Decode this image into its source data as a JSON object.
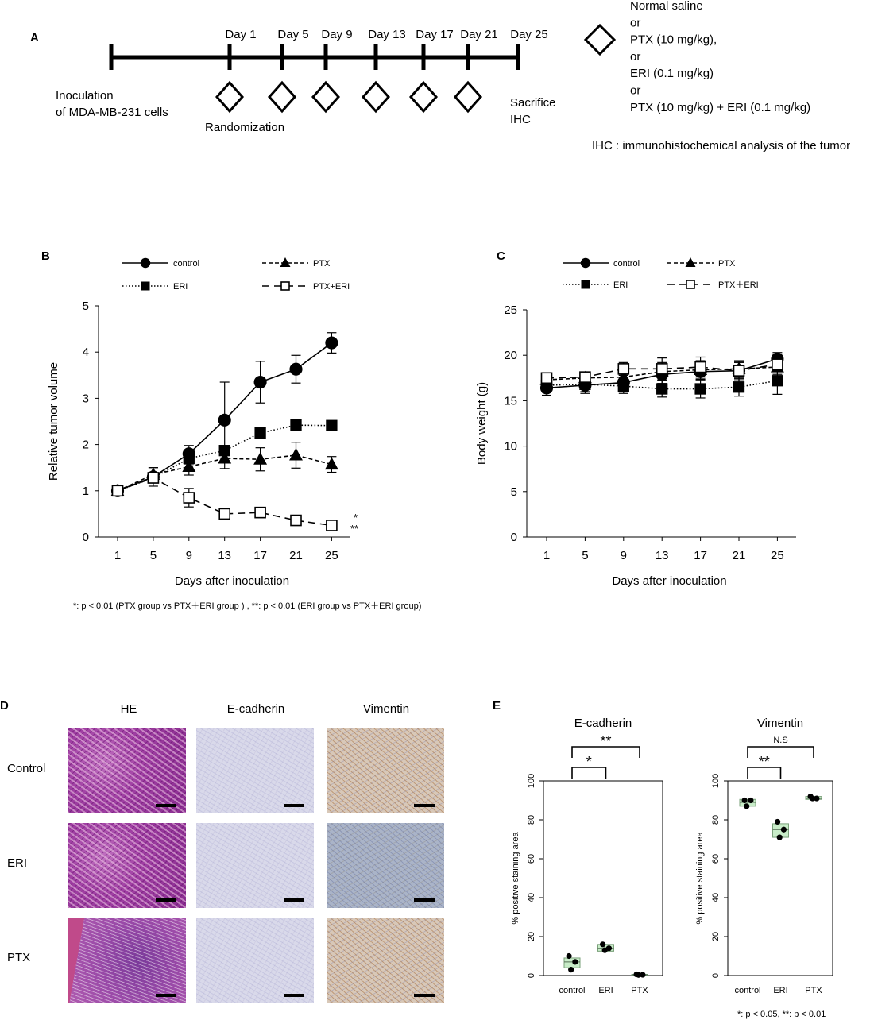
{
  "panelA": {
    "label": "A",
    "days": [
      "Day 1",
      "Day 5",
      "Day 9",
      "Day 13",
      "Day 17",
      "Day 21",
      "Day 25"
    ],
    "start_line1": "Inoculation",
    "start_line2": "of MDA-MB-231 cells",
    "randomization": "Randomization",
    "end_line1": "Sacrifice",
    "end_line2": "IHC",
    "treatments": [
      "Normal saline",
      "or",
      "PTX (10 mg/kg),",
      "or",
      "ERI (0.1 mg/kg)",
      "or",
      "PTX (10 mg/kg) + ERI (0.1 mg/kg)"
    ],
    "ihc_note": "IHC : immunohistochemical analysis of the tumor"
  },
  "panelB": {
    "label": "B",
    "legend": [
      "control",
      "PTX",
      "ERI",
      "PTX+ERI"
    ],
    "sig1": "*",
    "sig2": "**",
    "footnote": "*: p < 0.01 (PTX group vs PTX＋ERI group ) , **: p < 0.01 (ERI group vs PTX＋ERI group)"
  },
  "panelC": {
    "label": "C",
    "legend": [
      "control",
      "PTX",
      "ERI",
      "PTX＋ERI"
    ]
  },
  "panelD": {
    "label": "D",
    "columns": [
      "HE",
      "E-cadherin",
      "Vimentin"
    ],
    "rows": [
      "Control",
      "ERI",
      "PTX"
    ]
  },
  "panelE": {
    "label": "E",
    "footnote": "*: p < 0.05,  **: p < 0.01"
  },
  "chart_data": [
    {
      "id": "B",
      "type": "line",
      "xlabel": "Days after inoculation",
      "ylabel": "Relative tumor volume",
      "categories": [
        "1",
        "5",
        "9",
        "13",
        "17",
        "21",
        "25"
      ],
      "ylim": [
        0,
        5
      ],
      "yticks": [
        "0",
        "1",
        "2",
        "3",
        "4",
        "5"
      ],
      "series": [
        {
          "name": "control",
          "values": [
            1.0,
            1.3,
            1.8,
            2.53,
            3.35,
            3.63,
            4.2
          ],
          "err": [
            0.05,
            0.2,
            0.18,
            0.82,
            0.45,
            0.3,
            0.22
          ]
        },
        {
          "name": "PTX",
          "values": [
            1.0,
            1.35,
            1.52,
            1.7,
            1.68,
            1.77,
            1.57
          ],
          "err": [
            0.05,
            0.15,
            0.18,
            0.22,
            0.25,
            0.28,
            0.17
          ]
        },
        {
          "name": "ERI",
          "values": [
            1.0,
            1.28,
            1.7,
            1.87,
            2.25,
            2.42,
            2.41
          ],
          "err": [
            0.05,
            0.1,
            0.12,
            0.05,
            0.05,
            0.05,
            0.05
          ]
        },
        {
          "name": "PTX+ERI",
          "values": [
            1.0,
            1.28,
            0.85,
            0.5,
            0.53,
            0.36,
            0.25
          ],
          "err": [
            0.05,
            0.1,
            0.2,
            0.1,
            0.1,
            0.06,
            0.06
          ]
        }
      ]
    },
    {
      "id": "C",
      "type": "line",
      "xlabel": "Days after inoculation",
      "ylabel": "Body weight (g)",
      "categories": [
        "1",
        "5",
        "9",
        "13",
        "17",
        "21",
        "25"
      ],
      "ylim": [
        0,
        25
      ],
      "yticks": [
        "0",
        "5",
        "10",
        "15",
        "20",
        "25"
      ],
      "series": [
        {
          "name": "control",
          "values": [
            16.4,
            16.7,
            17.0,
            17.9,
            18.2,
            18.3,
            19.6
          ],
          "err": [
            0.8,
            0.7,
            0.8,
            1.0,
            0.9,
            0.9,
            0.7
          ]
        },
        {
          "name": "PTX",
          "values": [
            17.3,
            17.5,
            17.6,
            18.2,
            18.4,
            18.5,
            18.7
          ],
          "err": [
            0.6,
            0.5,
            0.7,
            1.0,
            1.0,
            0.8,
            0.8
          ]
        },
        {
          "name": "ERI",
          "values": [
            16.7,
            16.8,
            16.6,
            16.3,
            16.3,
            16.5,
            17.2
          ],
          "err": [
            0.8,
            1.0,
            0.8,
            0.9,
            1.0,
            1.0,
            1.5
          ]
        },
        {
          "name": "PTX＋ERI",
          "values": [
            17.5,
            17.6,
            18.5,
            18.5,
            18.7,
            18.3,
            19.0
          ],
          "err": [
            0.5,
            0.5,
            0.7,
            1.2,
            1.1,
            1.1,
            0.8
          ]
        }
      ]
    },
    {
      "id": "E1",
      "type": "box",
      "title": "E-cadherin",
      "ylabel": "% positive staining area",
      "categories": [
        "control",
        "ERI",
        "PTX"
      ],
      "ylim": [
        0,
        100
      ],
      "yticks": [
        "0",
        "20",
        "40",
        "60",
        "80",
        "100"
      ],
      "points": [
        [
          10,
          7,
          3
        ],
        [
          16,
          14,
          13
        ],
        [
          0.6,
          0.4,
          0.3
        ]
      ],
      "box": [
        [
          4,
          7,
          9
        ],
        [
          12.5,
          14,
          16
        ],
        [
          0.2,
          0.4,
          0.6
        ]
      ],
      "brackets": [
        {
          "from": 0,
          "to": 1,
          "label": "*"
        },
        {
          "from": 0,
          "to": 2,
          "label": "**"
        }
      ]
    },
    {
      "id": "E2",
      "type": "box",
      "title": "Vimentin",
      "ylabel": "% positive staining area",
      "categories": [
        "control",
        "ERI",
        "PTX"
      ],
      "ylim": [
        0,
        100
      ],
      "yticks": [
        "0",
        "20",
        "40",
        "60",
        "80",
        "100"
      ],
      "points": [
        [
          90,
          90,
          87
        ],
        [
          79,
          75,
          71
        ],
        [
          92,
          91,
          91
        ]
      ],
      "box": [
        [
          87,
          89,
          90.5
        ],
        [
          71,
          75,
          78
        ],
        [
          90.5,
          91,
          92
        ]
      ],
      "brackets": [
        {
          "from": 0,
          "to": 1,
          "label": "**"
        },
        {
          "from": 0,
          "to": 2,
          "label": "N.S"
        }
      ]
    }
  ]
}
